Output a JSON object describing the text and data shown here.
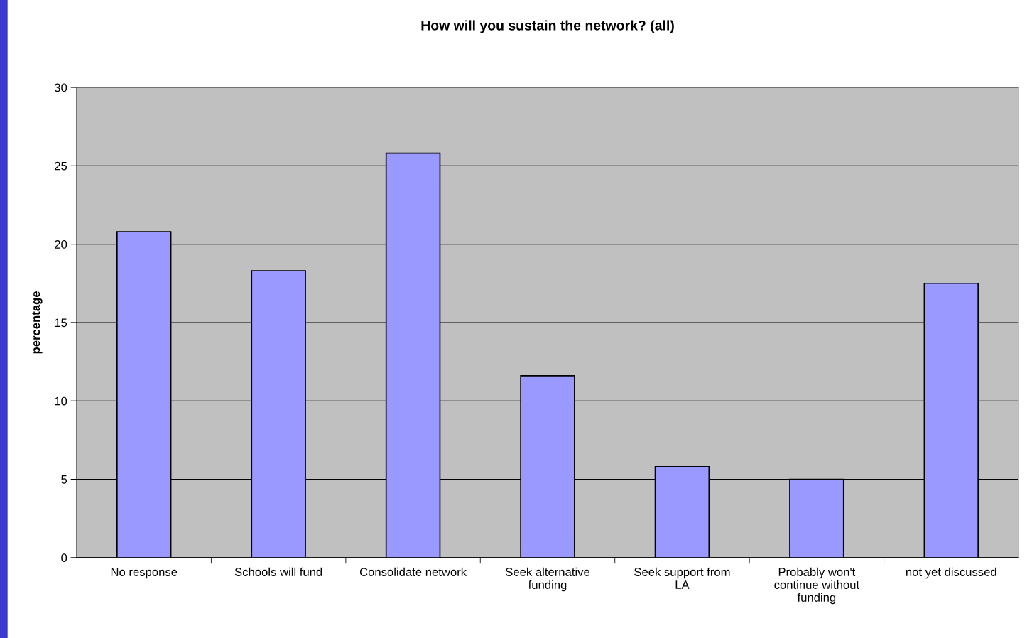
{
  "chart_data": {
    "type": "bar",
    "title": "How will you sustain the network? (all)",
    "ylabel": "percentage",
    "categories": [
      "No response",
      "Schools will fund",
      "Consolidate network",
      "Seek alternative\nfunding",
      "Seek support from\nLA",
      "Probably won't\ncontinue without\nfunding",
      "not yet discussed"
    ],
    "values": [
      20.8,
      18.3,
      25.8,
      11.6,
      5.8,
      5.0,
      17.5
    ],
    "color": "#9999ff",
    "ylim": [
      0,
      30
    ],
    "yticks": [
      0,
      5,
      10,
      15,
      20,
      25,
      30
    ],
    "grid": "y",
    "legend": false
  }
}
